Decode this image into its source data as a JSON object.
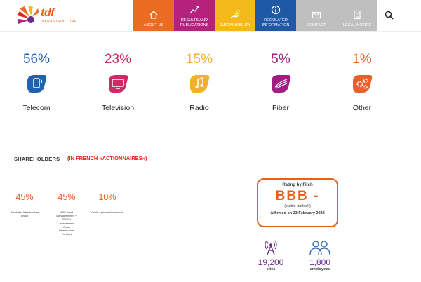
{
  "brand": {
    "name": "tdf",
    "tagline": "INFRASTRUCTURE"
  },
  "nav": [
    {
      "label": "ABOUT US",
      "color": "#ec6b22",
      "icon": "home-icon"
    },
    {
      "label": "RESULTS AND PUBLICATIONS",
      "color": "#b5227e",
      "icon": "chart-line-icon"
    },
    {
      "label": "SUSTAINABILITY",
      "color": "#f5b91b",
      "icon": "hand-leaf-icon"
    },
    {
      "label": "REGULATED INFORMATION",
      "color": "#1f58a4",
      "icon": "info-icon"
    },
    {
      "label": "CONTACT",
      "color": "#bfbfbf",
      "icon": "envelope-icon"
    },
    {
      "label": "LEGAL NOTICE",
      "color": "#bfbfbf",
      "icon": "document-icon"
    }
  ],
  "stats": [
    {
      "pct": "56%",
      "label": "Telecom",
      "color": "#1f62ad",
      "icon": "phone-icon"
    },
    {
      "pct": "23%",
      "label": "Television",
      "color": "#cc2b66",
      "icon": "tv-icon"
    },
    {
      "pct": "15%",
      "label": "Radio",
      "color": "#f3b12a",
      "icon": "music-note-icon"
    },
    {
      "pct": "5%",
      "label": "Fiber",
      "color": "#a21d82",
      "icon": "fiber-icon"
    },
    {
      "pct": "1%",
      "label": "Other",
      "color": "#ea5f2b",
      "icon": "gears-icon"
    }
  ],
  "shareholders": {
    "title": "SHAREHOLDERS",
    "french": "(IN FRENCH «ACTIONNAIRES»)",
    "items": [
      {
        "pct": "45%",
        "name": "Brookfield Infrastructure Group"
      },
      {
        "pct": "45%",
        "name": "APG Asset Management N.V PGGM Investments Arcus Infrastructure Partners"
      },
      {
        "pct": "10%",
        "name": "Crédit Agricole Assurances"
      }
    ]
  },
  "rating": {
    "title": "Rating by Fitch",
    "grade": "BBB -",
    "outlook": "(stable outlook)",
    "affirmed": "Affirmed on 23 February 2022"
  },
  "kpis": [
    {
      "value": "19,200",
      "label": "sites",
      "icon": "antenna-tower-icon"
    },
    {
      "value": "1,800",
      "label": "employees",
      "icon": "people-icon"
    }
  ]
}
